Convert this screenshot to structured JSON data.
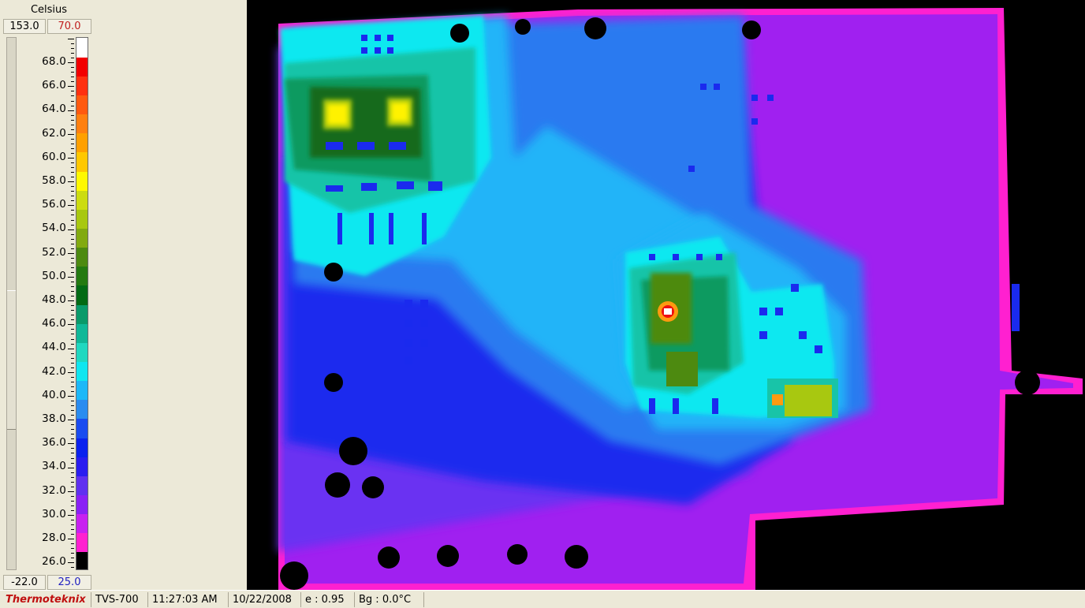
{
  "scale": {
    "unit": "Celsius",
    "range_max": "153.0",
    "scale_max": "70.0",
    "range_min": "-22.0",
    "scale_min": "25.0",
    "tick_labels": [
      "68.0",
      "66.0",
      "64.0",
      "62.0",
      "60.0",
      "58.0",
      "56.0",
      "54.0",
      "52.0",
      "50.0",
      "48.0",
      "46.0",
      "44.0",
      "42.0",
      "40.0",
      "38.0",
      "36.0",
      "34.0",
      "32.0",
      "30.0",
      "28.0",
      "26.0"
    ],
    "palette": [
      "#000000",
      "#ff20d0",
      "#c820f0",
      "#8a20f5",
      "#6030f0",
      "#2a1df0",
      "#0b22ee",
      "#1a4cf0",
      "#2a8cf0",
      "#1cb8f8",
      "#10e6f0",
      "#20d8c0",
      "#10b898",
      "#0a9a6a",
      "#036a14",
      "#247a10",
      "#4d8a10",
      "#82aa10",
      "#a8c810",
      "#ccdc10",
      "#fff800",
      "#ffc800",
      "#ffa000",
      "#ff8010",
      "#ff5a10",
      "#ff3010",
      "#f20000",
      "#ffffff"
    ]
  },
  "thermal_image": {
    "palette": {
      "black": "#000000",
      "magenta": "#ff20d0",
      "purple": "#a020f0",
      "violet": "#6a30f2",
      "blue": "#1a2aee",
      "azure": "#2a7af0",
      "sky": "#20b4f8",
      "cyan": "#10e8f0",
      "teal": "#18c4a8",
      "green": "#0f9a60",
      "darkgreen": "#156a1a",
      "olive": "#4d8a10",
      "lime": "#a8c810",
      "yellow": "#fff200",
      "orange": "#ff9a10",
      "red": "#f01010",
      "white": "#ffffff"
    }
  },
  "status_bar": {
    "brand": "Thermoteknix",
    "camera": "TVS-700",
    "time": "11:27:03 AM",
    "date": "10/22/2008",
    "emissivity": "e : 0.95",
    "background_temp": "Bg : 0.0°C"
  }
}
